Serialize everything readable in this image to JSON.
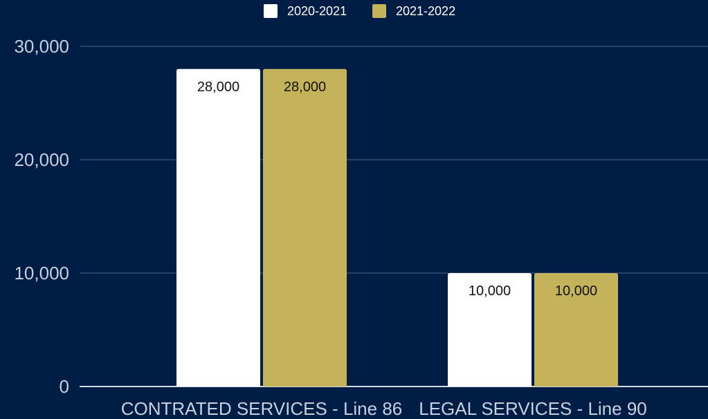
{
  "colors": {
    "background": "#001d45",
    "gridline": "#4b6384",
    "axis_text": "#c7d0de"
  },
  "chart_data": {
    "type": "bar",
    "categories": [
      "CONTRATED SERVICES - Line 86",
      "LEGAL SERVICES - Line 90"
    ],
    "series": [
      {
        "name": "2020-2021",
        "color": "#ffffff",
        "values": [
          28000,
          10000
        ]
      },
      {
        "name": "2021-2022",
        "color": "#c4b35b",
        "values": [
          28000,
          10000
        ]
      }
    ],
    "data_labels": [
      [
        "28,000",
        "10,000"
      ],
      [
        "28,000",
        "10,000"
      ]
    ],
    "yticks": [
      0,
      10000,
      20000,
      30000
    ],
    "ytick_labels": [
      "0",
      "10,000",
      "20,000",
      "30,000"
    ],
    "ylim": [
      0,
      30000
    ],
    "grid": true,
    "legend_position": "top-center"
  }
}
